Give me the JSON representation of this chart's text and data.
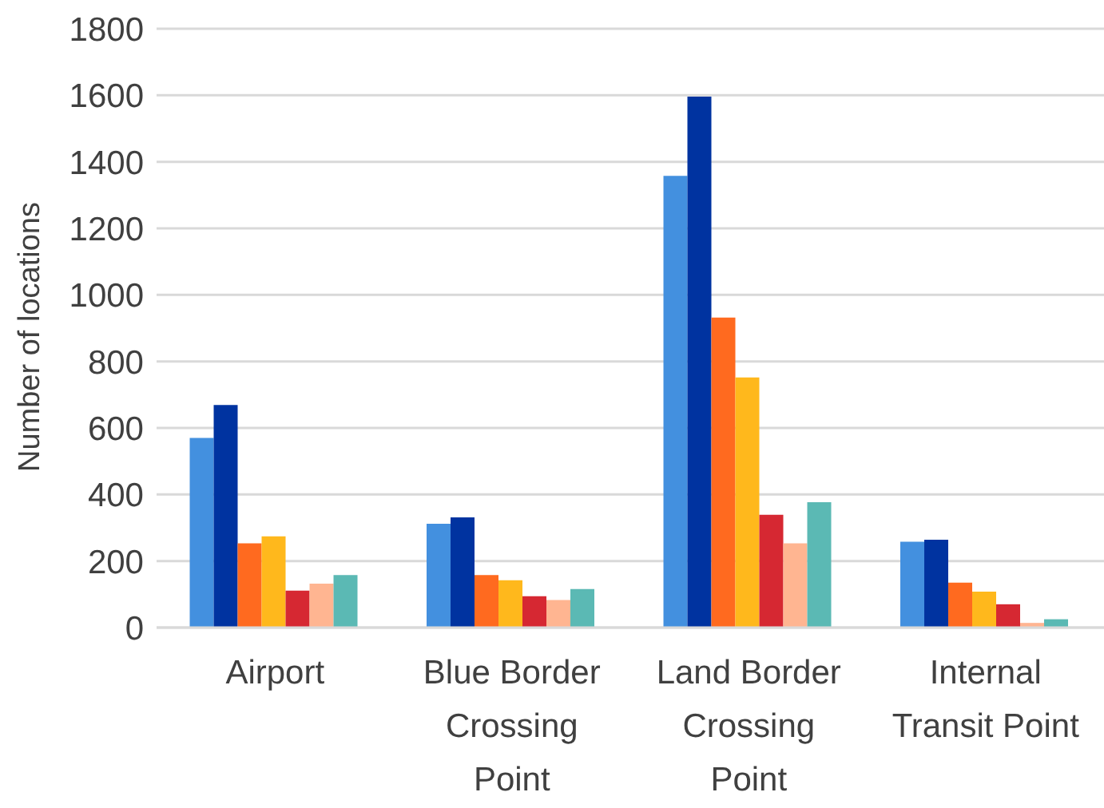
{
  "chart_data": {
    "type": "bar",
    "ylabel": "Number of locations",
    "categories": [
      "Airport",
      "Blue Border Crossing Point",
      "Land Border Crossing Point",
      "Internal Transit Point"
    ],
    "series": [
      {
        "color": "#4390df",
        "values": [
          570,
          312,
          1358,
          258
        ]
      },
      {
        "color": "#0033a0",
        "values": [
          669,
          331,
          1596,
          264
        ]
      },
      {
        "color": "#ff6a1f",
        "values": [
          253,
          158,
          932,
          135
        ]
      },
      {
        "color": "#ffb81c",
        "values": [
          274,
          142,
          752,
          108
        ]
      },
      {
        "color": "#d62832",
        "values": [
          111,
          94,
          339,
          70
        ]
      },
      {
        "color": "#ffb591",
        "values": [
          132,
          83,
          253,
          14
        ]
      },
      {
        "color": "#5bb9b4",
        "values": [
          158,
          116,
          377,
          25
        ]
      }
    ],
    "ylim": [
      0,
      1800
    ],
    "yticks": [
      0,
      200,
      400,
      600,
      800,
      1000,
      1200,
      1400,
      1600,
      1800
    ],
    "grid": "y",
    "legend": false
  }
}
